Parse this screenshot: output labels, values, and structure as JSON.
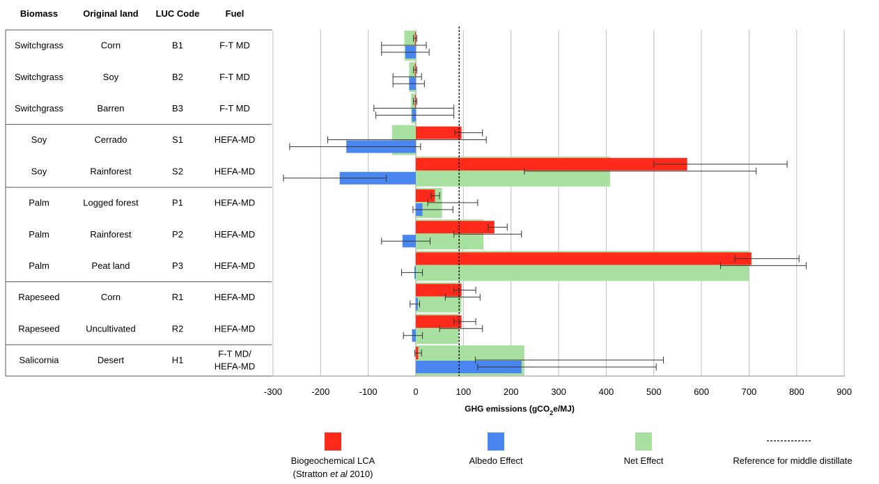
{
  "table": {
    "headers": [
      "Biomass",
      "Original land",
      "LUC Code",
      "Fuel"
    ],
    "rows": [
      {
        "biomass": "Switchgrass",
        "land": "Corn",
        "code": "B1",
        "fuel": [
          "F-T MD"
        ]
      },
      {
        "biomass": "Switchgrass",
        "land": "Soy",
        "code": "B2",
        "fuel": [
          "F-T MD"
        ]
      },
      {
        "biomass": "Switchgrass",
        "land": "Barren",
        "code": "B3",
        "fuel": [
          "F-T MD"
        ]
      },
      {
        "biomass": "Soy",
        "land": "Cerrado",
        "code": "S1",
        "fuel": [
          "HEFA-MD"
        ]
      },
      {
        "biomass": "Soy",
        "land": "Rainforest",
        "code": "S2",
        "fuel": [
          "HEFA-MD"
        ]
      },
      {
        "biomass": "Palm",
        "land": "Logged forest",
        "code": "P1",
        "fuel": [
          "HEFA-MD"
        ]
      },
      {
        "biomass": "Palm",
        "land": "Rainforest",
        "code": "P2",
        "fuel": [
          "HEFA-MD"
        ]
      },
      {
        "biomass": "Palm",
        "land": "Peat land",
        "code": "P3",
        "fuel": [
          "HEFA-MD"
        ]
      },
      {
        "biomass": "Rapeseed",
        "land": "Corn",
        "code": "R1",
        "fuel": [
          "HEFA-MD"
        ]
      },
      {
        "biomass": "Rapeseed",
        "land": "Uncultivated",
        "code": "R2",
        "fuel": [
          "HEFA-MD"
        ]
      },
      {
        "biomass": "Salicornia",
        "land": "Desert",
        "code": "H1",
        "fuel": [
          "F-T MD/",
          "HEFA-MD"
        ]
      }
    ],
    "group_breaks_after": [
      2,
      4,
      7,
      9
    ]
  },
  "chart_data": {
    "type": "bar",
    "orientation": "horizontal",
    "categories": [
      "B1",
      "B2",
      "B3",
      "S1",
      "S2",
      "P1",
      "P2",
      "P3",
      "R1",
      "R2",
      "H1"
    ],
    "xlabel_main": "GHG emissions (gCO",
    "xlabel_sub": "2",
    "xlabel_end": "e/MJ)",
    "xlim": [
      -300,
      900
    ],
    "xticks": [
      -300,
      -200,
      -100,
      0,
      100,
      200,
      300,
      400,
      500,
      600,
      700,
      800,
      900
    ],
    "grid": true,
    "reference_line": 91,
    "series": [
      {
        "name": "Net Effect",
        "color": "#a8e0a0",
        "values": [
          -24,
          -14,
          -10,
          -50,
          408,
          55,
          142,
          700,
          96,
          90,
          228
        ],
        "err_low": [
          -72,
          -48,
          -88,
          -185,
          228,
          25,
          80,
          640,
          62,
          50,
          125
        ],
        "err_high": [
          22,
          12,
          80,
          148,
          715,
          130,
          222,
          820,
          135,
          140,
          520
        ]
      },
      {
        "name": "Biogeochemical LCA",
        "name_line2_pre": "(Stratton ",
        "name_line2_italic": "et al",
        "name_line2_post": " 2010)",
        "color": "#ff2a1a",
        "values": [
          -2,
          -2,
          -2,
          96,
          570,
          40,
          165,
          705,
          96,
          96,
          5
        ],
        "err_low": [
          -5,
          -5,
          -5,
          82,
          500,
          32,
          152,
          670,
          80,
          80,
          -2
        ],
        "err_high": [
          2,
          2,
          2,
          140,
          780,
          50,
          192,
          805,
          126,
          126,
          12
        ]
      },
      {
        "name": "Albedo Effect",
        "color": "#4a86f0",
        "values": [
          -22,
          -14,
          -8,
          -146,
          -160,
          14,
          -28,
          -3,
          4,
          -8,
          222
        ],
        "err_low": [
          -72,
          -48,
          -84,
          -265,
          -278,
          -6,
          -72,
          -30,
          -12,
          -26,
          130
        ],
        "err_high": [
          28,
          18,
          80,
          10,
          -62,
          78,
          30,
          14,
          8,
          14,
          505
        ]
      }
    ],
    "legend": {
      "placement": "bottom",
      "reference_label": "Reference for middle distillate"
    }
  }
}
